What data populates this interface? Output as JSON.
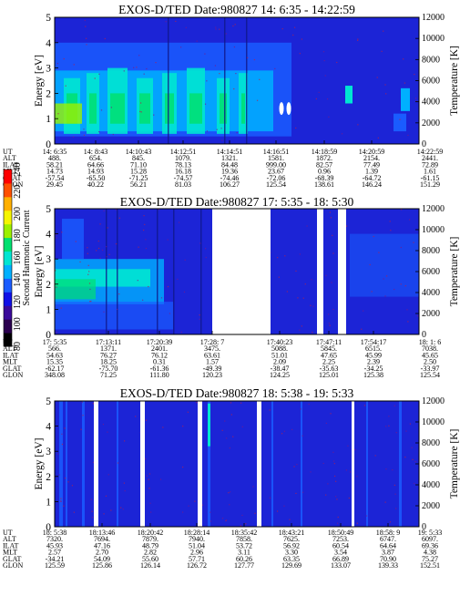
{
  "colors": {
    "background_field": "#1c24d6",
    "grid_field": "#2a3ad8",
    "gap": "#ffffff",
    "colorscale": [
      "#000000",
      "#2a004e",
      "#3a0a9a",
      "#1010e6",
      "#1a5cff",
      "#00b0ff",
      "#00e5d2",
      "#00e070",
      "#9cf000",
      "#f5f500",
      "#ffb000",
      "#ff5000",
      "#ff0000"
    ]
  },
  "chart_data": [
    {
      "type": "heatmap",
      "title": "EXOS-D/TED  Date:980827  14: 6:35 - 14:22:59",
      "ylabel": "Energy [eV]",
      "y2label": "Temperature [K]",
      "ylim": [
        0,
        5
      ],
      "y2lim": [
        0,
        12000
      ],
      "yticks": [
        "0",
        "1",
        "2",
        "3",
        "4",
        "5"
      ],
      "y2ticks": [
        "0",
        "2000",
        "4000",
        "6000",
        "8000",
        "10000",
        "12000"
      ],
      "rows": [
        {
          "name": "UT",
          "values": [
            "14: 6:35",
            "14: 8:43",
            "14:10:43",
            "14:12:51",
            "14:14:51",
            "14:16:51",
            "14:18:59",
            "14:20:59",
            "14:22:59"
          ]
        },
        {
          "name": "ALT",
          "values": [
            "488.",
            "654.",
            "845.",
            "1079.",
            "1321.",
            "1581.",
            "1872.",
            "2154.",
            "2441."
          ]
        },
        {
          "name": "ILAT",
          "values": [
            "58.21",
            "64.66",
            "71.10",
            "78.13",
            "84.48",
            "999.00",
            "82.57",
            "77.49",
            "72.89"
          ]
        },
        {
          "name": "MLT",
          "values": [
            "14.73",
            "14.93",
            "15.28",
            "16.18",
            "19.36",
            "23.67",
            "0.96",
            "1.39",
            "1.61"
          ]
        },
        {
          "name": "GLAT",
          "values": [
            "-57.54",
            "-65.50",
            "-71.25",
            "-74.57",
            "-74.46",
            "-72.06",
            "-68.39",
            "-64.72",
            "-61.15"
          ]
        },
        {
          "name": "GLON",
          "values": [
            "29.45",
            "40.22",
            "56.21",
            "81.03",
            "106.27",
            "125.54",
            "138.61",
            "146.24",
            "151.29"
          ]
        }
      ]
    },
    {
      "type": "heatmap",
      "title": "EXOS-D/TED  Date:980827  17: 5:35 - 18: 5:30",
      "ylabel": "Energy [eV]",
      "y2label": "Temperature [K]",
      "ylim": [
        0,
        5
      ],
      "y2lim": [
        0,
        12000
      ],
      "yticks": [
        "0",
        "1",
        "2",
        "3",
        "4",
        "5"
      ],
      "y2ticks": [
        "0",
        "2000",
        "4000",
        "6000",
        "8000",
        "10000",
        "12000"
      ],
      "colorbar": {
        "label": "Second Harmonic Current",
        "ticks": [
          "80",
          "100",
          "120",
          "140",
          "160",
          "180",
          "200",
          "220",
          "240"
        ]
      },
      "rows": [
        {
          "name": "UT",
          "values": [
            "17: 5:35",
            "17:13:11",
            "17:20:39",
            "17:28: 7",
            "17:40:23",
            "17:47:11",
            "17:54:17",
            "18: 1: 6"
          ]
        },
        {
          "name": "ALT",
          "values": [
            "566.",
            "1371.",
            "2401.",
            "3475.",
            "5088.",
            "5845.",
            "6515.",
            "7038."
          ]
        },
        {
          "name": "ILAT",
          "values": [
            "54.63",
            "76.27",
            "76.12",
            "63.61",
            "51.01",
            "47.65",
            "45.99",
            "45.65"
          ]
        },
        {
          "name": "MLT",
          "values": [
            "15.35",
            "18.25",
            "0.31",
            "1.57",
            "2.09",
            "2.25",
            "2.39",
            "2.50"
          ]
        },
        {
          "name": "GLAT",
          "values": [
            "-62.17",
            "-75.70",
            "-61.36",
            "-49.39",
            "-38.47",
            "-35.63",
            "-34.25",
            "-33.97"
          ]
        },
        {
          "name": "GLON",
          "values": [
            "348.08",
            "71.25",
            "111.80",
            "120.23",
            "124.25",
            "125.01",
            "125.38",
            "125.54"
          ]
        }
      ]
    },
    {
      "type": "heatmap",
      "title": "EXOS-D/TED  Date:980827  18: 5:38 - 19: 5:33",
      "ylabel": "Energy [eV]",
      "y2label": "Temperature [K]",
      "ylim": [
        0,
        5
      ],
      "y2lim": [
        0,
        12000
      ],
      "yticks": [
        "0",
        "1",
        "2",
        "3",
        "4",
        "5"
      ],
      "y2ticks": [
        "0",
        "2000",
        "4000",
        "6000",
        "8000",
        "10000",
        "12000"
      ],
      "rows": [
        {
          "name": "UT",
          "values": [
            "18: 5:38",
            "18:13:46",
            "18:20:42",
            "18:28:14",
            "18:35:42",
            "18:43:21",
            "18:50:49",
            "18:58: 9",
            "19: 5:33"
          ]
        },
        {
          "name": "ALT",
          "values": [
            "7320.",
            "7694.",
            "7879.",
            "7940.",
            "7858.",
            "7625.",
            "7253.",
            "6747.",
            "6097."
          ]
        },
        {
          "name": "ILAT",
          "values": [
            "45.93",
            "47.16",
            "48.79",
            "51.04",
            "53.72",
            "56.92",
            "60.54",
            "64.64",
            "69.36"
          ]
        },
        {
          "name": "MLT",
          "values": [
            "2.57",
            "2.70",
            "2.82",
            "2.96",
            "3.11",
            "3.30",
            "3.54",
            "3.87",
            "4.38"
          ]
        },
        {
          "name": "GLAT",
          "values": [
            "-34.21",
            "54.09",
            "55.60",
            "57.71",
            "60.26",
            "63.35",
            "66.89",
            "70.90",
            "75.27"
          ]
        },
        {
          "name": "GLON",
          "values": [
            "125.59",
            "125.86",
            "126.14",
            "126.72",
            "127.77",
            "129.69",
            "133.07",
            "139.33",
            "152.51"
          ]
        }
      ]
    }
  ]
}
